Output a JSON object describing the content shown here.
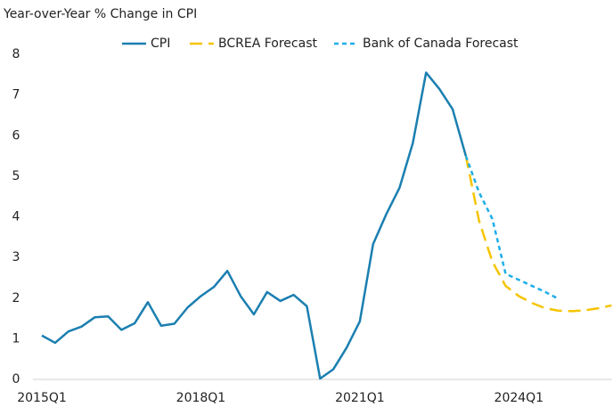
{
  "chart_data": {
    "type": "line",
    "title": "Year-over-Year % Change in CPI",
    "categories": [
      "2015Q1",
      null,
      null,
      null,
      null,
      null,
      null,
      null,
      null,
      null,
      null,
      null,
      "2018Q1",
      null,
      null,
      null,
      null,
      null,
      null,
      null,
      null,
      null,
      null,
      null,
      "2021Q1",
      null,
      null,
      null,
      null,
      null,
      null,
      null,
      null,
      null,
      null,
      null,
      "2024Q1",
      null,
      null,
      null,
      null,
      null,
      null,
      null
    ],
    "series": [
      {
        "name": "CPI",
        "color": "#1b7fb0",
        "dash": "none",
        "values": [
          1.08,
          0.9,
          1.18,
          1.3,
          1.53,
          1.55,
          1.22,
          1.38,
          1.9,
          1.32,
          1.37,
          1.77,
          2.05,
          2.28,
          2.67,
          2.05,
          1.6,
          2.15,
          1.93,
          2.08,
          1.8,
          0.02,
          0.25,
          0.78,
          1.43,
          3.33,
          4.07,
          4.72,
          5.82,
          7.55,
          7.15,
          6.65,
          5.5,
          null,
          null,
          null,
          null,
          null,
          null,
          null,
          null,
          null,
          null,
          null
        ]
      },
      {
        "name": "BCREA Forecast",
        "color": "#f5c400",
        "dash": "14 7",
        "values": [
          null,
          null,
          null,
          null,
          null,
          null,
          null,
          null,
          null,
          null,
          null,
          null,
          null,
          null,
          null,
          null,
          null,
          null,
          null,
          null,
          null,
          null,
          null,
          null,
          null,
          null,
          null,
          null,
          null,
          null,
          null,
          null,
          5.5,
          3.9,
          2.9,
          2.3,
          2.05,
          1.88,
          1.75,
          1.69,
          1.68,
          1.7,
          1.75,
          1.82
        ]
      },
      {
        "name": "Bank of Canada Forecast",
        "color": "#1eaee8",
        "dash": "5 4",
        "values": [
          null,
          null,
          null,
          null,
          null,
          null,
          null,
          null,
          null,
          null,
          null,
          null,
          null,
          null,
          null,
          null,
          null,
          null,
          null,
          null,
          null,
          null,
          null,
          null,
          null,
          null,
          null,
          null,
          null,
          null,
          null,
          null,
          5.5,
          4.6,
          3.95,
          2.6,
          2.45,
          2.3,
          2.15,
          1.98,
          null,
          null,
          null,
          null
        ]
      }
    ],
    "ylim": [
      0,
      8
    ],
    "yticks": [
      0,
      1,
      2,
      3,
      4,
      5,
      6,
      7,
      8
    ],
    "grid": false,
    "legend": "top"
  }
}
